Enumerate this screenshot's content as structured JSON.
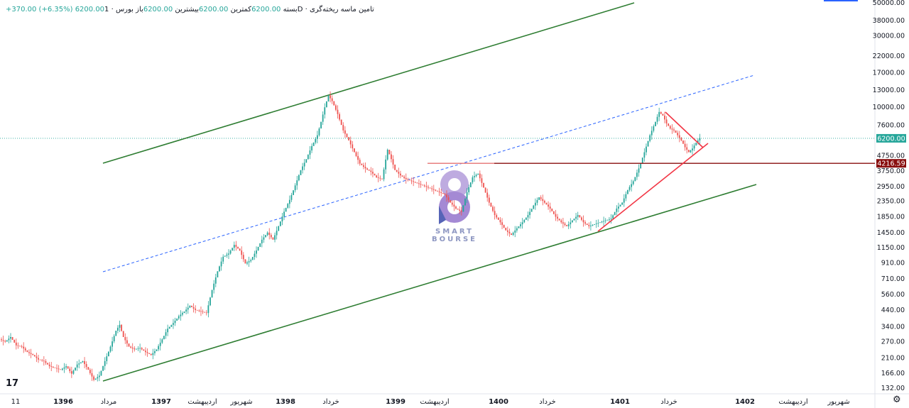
{
  "header": {
    "title": "تامین ماسه ریخته‌گری",
    "interval": "1D",
    "exchange": "بورس",
    "open_label": "باز",
    "open_value": "6200.00",
    "high_label": "بیشترین",
    "high_value": "6200.00",
    "low_label": "کمترین",
    "low_value": "6200.00",
    "close_label": "بسته",
    "close_value": "6200.00",
    "change": "+370.00 (+6.35%)"
  },
  "watermark": {
    "line1": "SMART",
    "line2": "BOURSE"
  },
  "tv_logo": "17",
  "colors": {
    "up": "#26a69a",
    "down": "#ef5350",
    "channel": "#2e7d32",
    "midline": "#2962ff",
    "trend": "#f23645",
    "support": "#880e0e",
    "price_tag": "#26a69a",
    "support_tag": "#880e0e"
  },
  "chart_data": {
    "type": "line",
    "y_scale": "log",
    "y_ticks": [
      132,
      166,
      210,
      270,
      340,
      440,
      560,
      710,
      910,
      1150,
      1450,
      1850,
      2350,
      2950,
      3750,
      4750,
      6200,
      7600,
      10000,
      13000,
      17000,
      22000,
      30000,
      38000,
      50000
    ],
    "y_tick_labels": [
      "132.00",
      "166.00",
      "210.00",
      "270.00",
      "340.00",
      "440.00",
      "560.00",
      "710.00",
      "910.00",
      "1150.00",
      "1450.00",
      "1850.00",
      "2350.00",
      "2950.00",
      "3750.00",
      "4750.00",
      "6200.00",
      "7600.00",
      "10000.00",
      "13000.00",
      "17000.00",
      "22000.00",
      "30000.00",
      "38000.00",
      "50000.00"
    ],
    "x_ticks": [
      {
        "label": "11",
        "bold": false
      },
      {
        "label": "1396",
        "bold": true
      },
      {
        "label": "مرداد",
        "bold": false
      },
      {
        "label": "1397",
        "bold": true
      },
      {
        "label": "اردیبهشت",
        "bold": false
      },
      {
        "label": "شهریور",
        "bold": false
      },
      {
        "label": "1398",
        "bold": true
      },
      {
        "label": "خرداد",
        "bold": false
      },
      {
        "label": "1399",
        "bold": true
      },
      {
        "label": "اردیبهشت",
        "bold": false
      },
      {
        "label": "1400",
        "bold": true
      },
      {
        "label": "خرداد",
        "bold": false
      },
      {
        "label": "1401",
        "bold": true
      },
      {
        "label": "خرداد",
        "bold": false
      },
      {
        "label": "1402",
        "bold": true
      },
      {
        "label": "اردیبهشت",
        "bold": false
      },
      {
        "label": "شهریور",
        "bold": false
      }
    ],
    "last_price": "6200.00",
    "support_level": "4216.59",
    "price_series": [
      [
        0,
        280
      ],
      [
        3,
        270
      ],
      [
        6,
        290
      ],
      [
        9,
        255
      ],
      [
        12,
        250
      ],
      [
        15,
        230
      ],
      [
        18,
        220
      ],
      [
        21,
        205
      ],
      [
        24,
        200
      ],
      [
        27,
        185
      ],
      [
        30,
        180
      ],
      [
        33,
        175
      ],
      [
        36,
        185
      ],
      [
        39,
        165
      ],
      [
        42,
        190
      ],
      [
        45,
        200
      ],
      [
        48,
        175
      ],
      [
        51,
        150
      ],
      [
        54,
        160
      ],
      [
        57,
        200
      ],
      [
        60,
        250
      ],
      [
        63,
        320
      ],
      [
        65,
        350
      ],
      [
        67,
        290
      ],
      [
        70,
        250
      ],
      [
        73,
        240
      ],
      [
        76,
        245
      ],
      [
        79,
        230
      ],
      [
        82,
        220
      ],
      [
        85,
        240
      ],
      [
        88,
        280
      ],
      [
        91,
        330
      ],
      [
        94,
        360
      ],
      [
        97,
        400
      ],
      [
        100,
        430
      ],
      [
        103,
        470
      ],
      [
        106,
        440
      ],
      [
        109,
        430
      ],
      [
        112,
        420
      ],
      [
        115,
        600
      ],
      [
        118,
        800
      ],
      [
        121,
        1000
      ],
      [
        124,
        1050
      ],
      [
        127,
        1200
      ],
      [
        130,
        1100
      ],
      [
        133,
        900
      ],
      [
        136,
        950
      ],
      [
        139,
        1100
      ],
      [
        142,
        1300
      ],
      [
        145,
        1450
      ],
      [
        148,
        1300
      ],
      [
        151,
        1600
      ],
      [
        154,
        2000
      ],
      [
        157,
        2400
      ],
      [
        160,
        3000
      ],
      [
        163,
        3800
      ],
      [
        166,
        4500
      ],
      [
        169,
        5500
      ],
      [
        172,
        6500
      ],
      [
        174,
        8000
      ],
      [
        176,
        10000
      ],
      [
        178,
        12000
      ],
      [
        180,
        11000
      ],
      [
        183,
        9000
      ],
      [
        186,
        7000
      ],
      [
        189,
        6000
      ],
      [
        192,
        5000
      ],
      [
        195,
        4200
      ],
      [
        198,
        3900
      ],
      [
        201,
        3700
      ],
      [
        204,
        3400
      ],
      [
        207,
        3300
      ],
      [
        210,
        5200
      ],
      [
        212,
        4500
      ],
      [
        214,
        3800
      ],
      [
        217,
        3500
      ],
      [
        220,
        3300
      ],
      [
        223,
        3200
      ],
      [
        226,
        3100
      ],
      [
        229,
        3000
      ],
      [
        232,
        2900
      ],
      [
        235,
        2800
      ],
      [
        238,
        2700
      ],
      [
        241,
        2600
      ],
      [
        244,
        2300
      ],
      [
        247,
        2100
      ],
      [
        250,
        2000
      ],
      [
        253,
        2700
      ],
      [
        256,
        3400
      ],
      [
        259,
        3600
      ],
      [
        262,
        2900
      ],
      [
        265,
        2300
      ],
      [
        268,
        1900
      ],
      [
        271,
        1700
      ],
      [
        274,
        1500
      ],
      [
        277,
        1400
      ],
      [
        280,
        1550
      ],
      [
        283,
        1700
      ],
      [
        286,
        1900
      ],
      [
        289,
        2200
      ],
      [
        292,
        2500
      ],
      [
        295,
        2300
      ],
      [
        298,
        2100
      ],
      [
        301,
        1850
      ],
      [
        304,
        1700
      ],
      [
        307,
        1600
      ],
      [
        310,
        1750
      ],
      [
        313,
        1900
      ],
      [
        316,
        1700
      ],
      [
        319,
        1600
      ],
      [
        322,
        1650
      ],
      [
        325,
        1700
      ],
      [
        328,
        1750
      ],
      [
        331,
        1800
      ],
      [
        334,
        2100
      ],
      [
        337,
        2300
      ],
      [
        340,
        2800
      ],
      [
        343,
        3200
      ],
      [
        346,
        3900
      ],
      [
        349,
        5000
      ],
      [
        352,
        6500
      ],
      [
        355,
        8000
      ],
      [
        357,
        9300
      ],
      [
        359,
        8800
      ],
      [
        361,
        7800
      ],
      [
        363,
        7200
      ],
      [
        365,
        7000
      ],
      [
        367,
        6500
      ],
      [
        369,
        6000
      ],
      [
        371,
        5400
      ],
      [
        373,
        5000
      ],
      [
        375,
        5300
      ],
      [
        377,
        5800
      ],
      [
        379,
        6200
      ]
    ]
  }
}
